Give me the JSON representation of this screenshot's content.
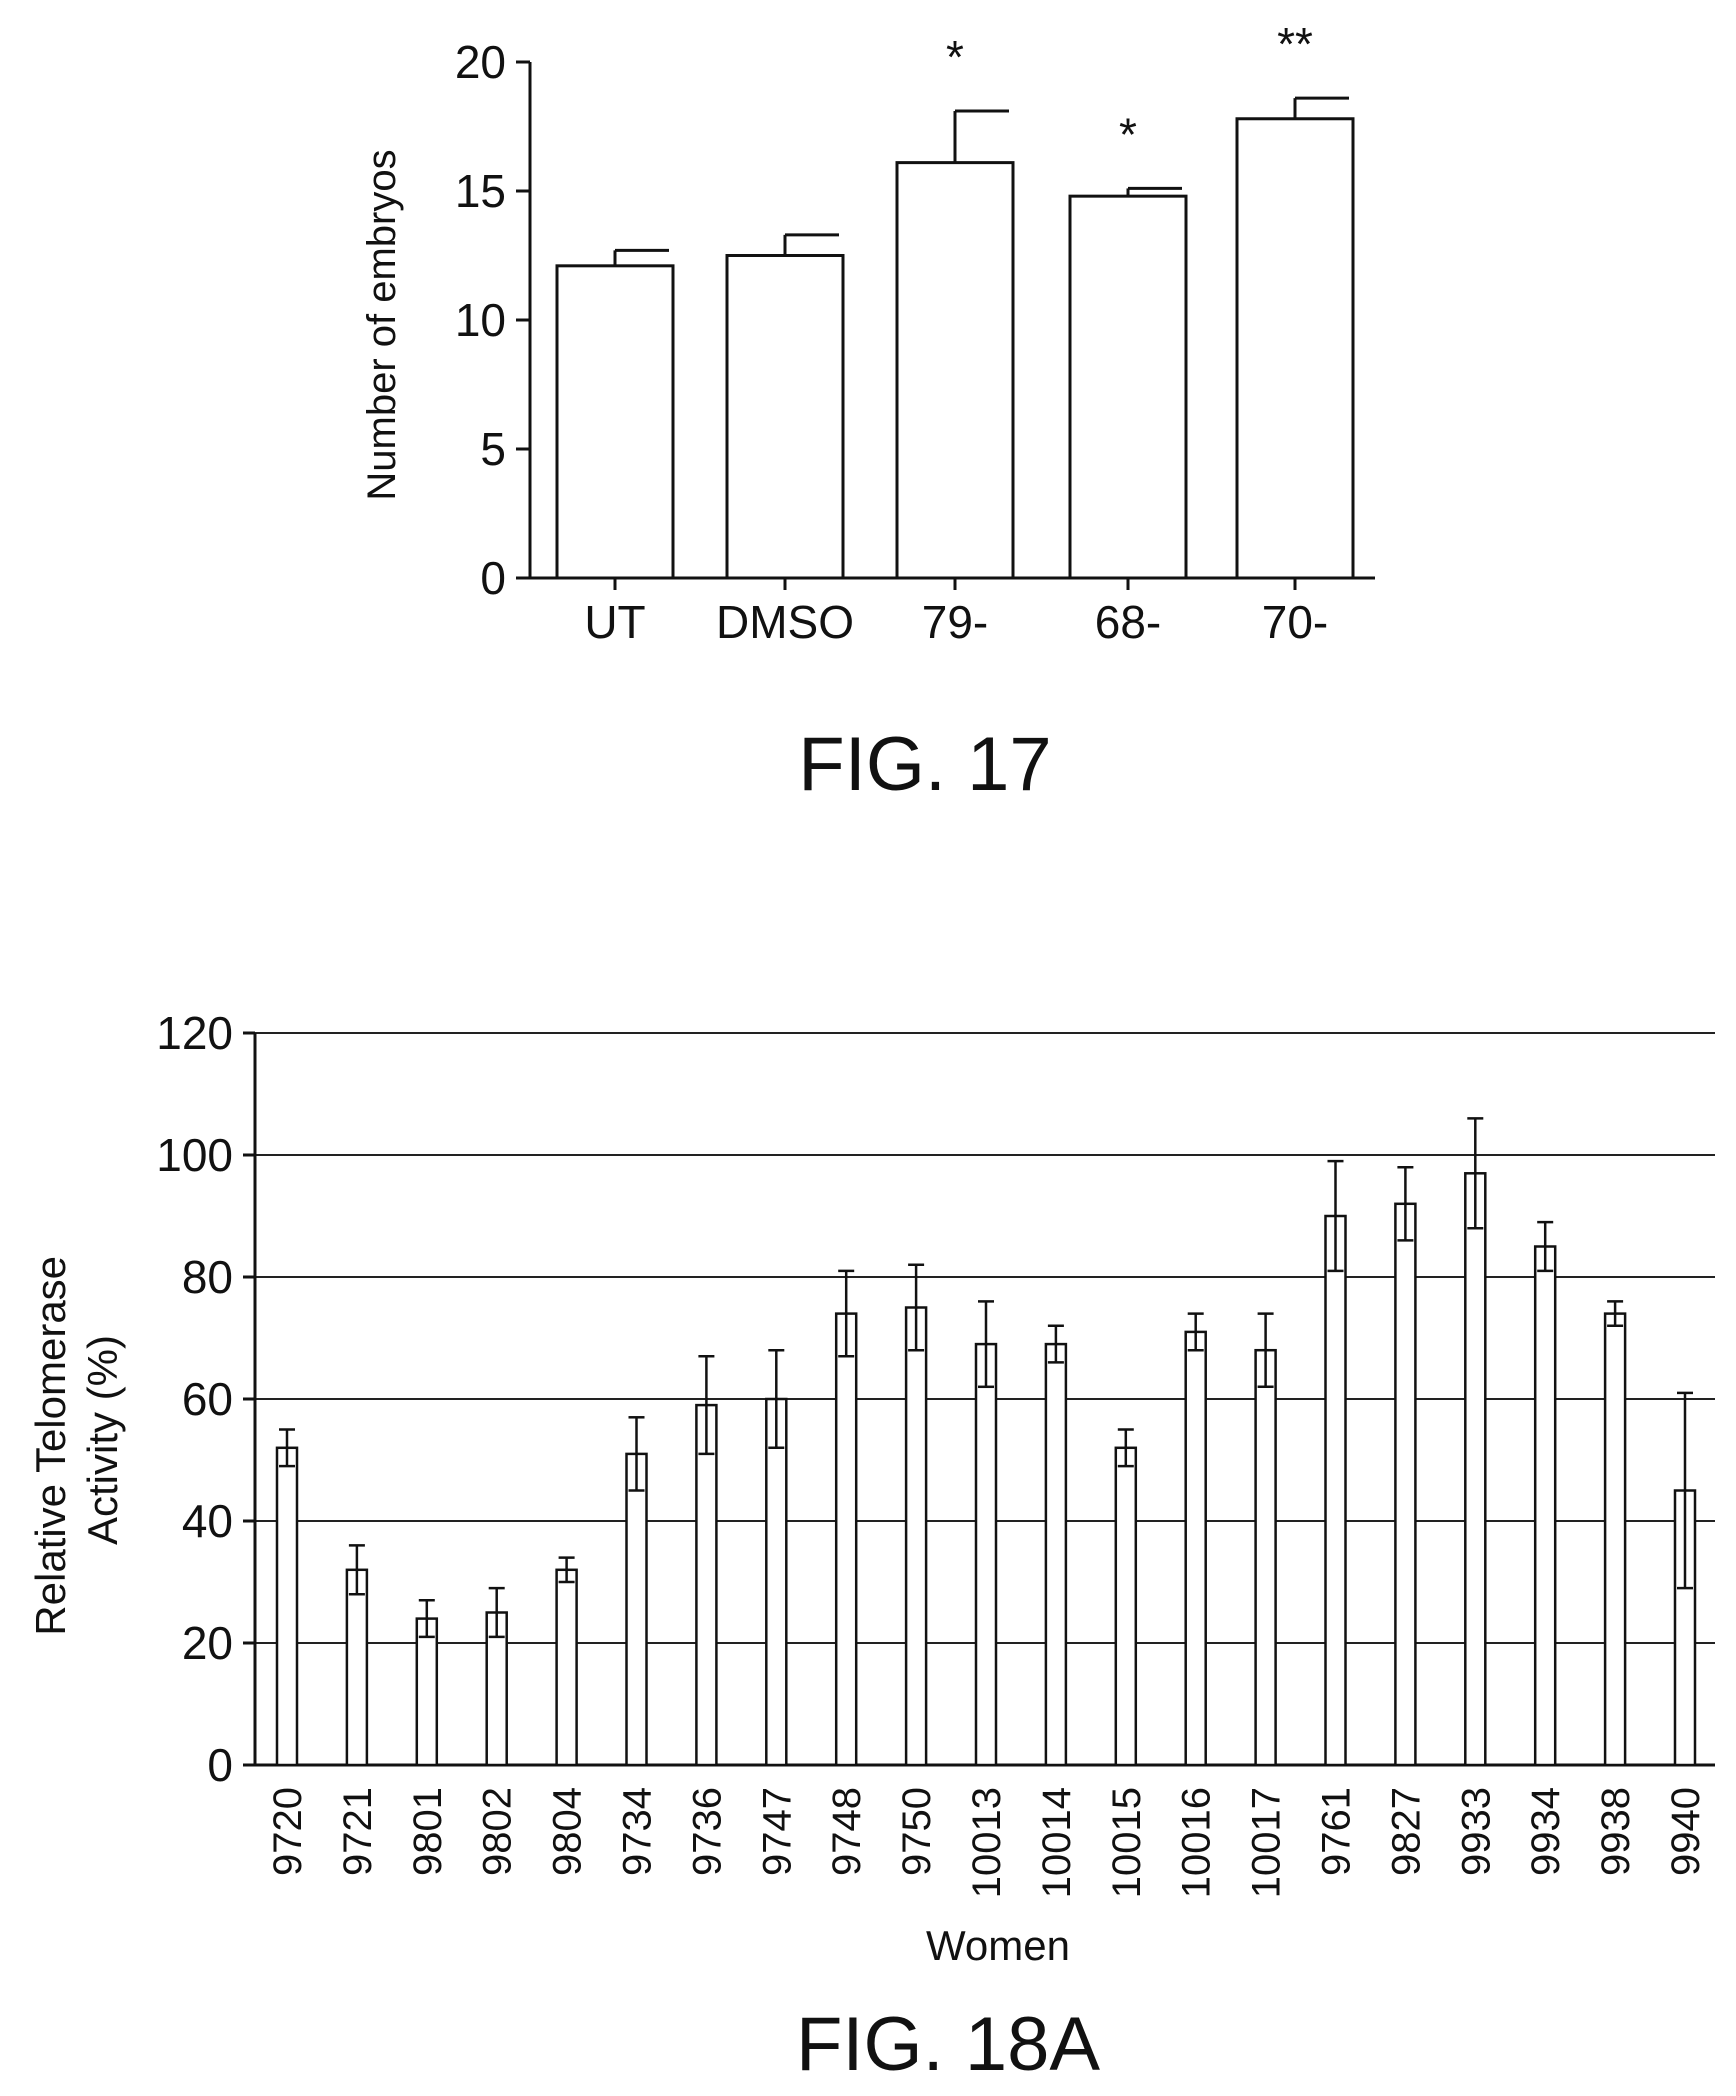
{
  "figures": [
    {
      "caption": "FIG. 17",
      "chart_data": {
        "type": "bar",
        "categories": [
          "UT",
          "DMSO",
          "79-",
          "68-",
          "70-"
        ],
        "values": [
          12.1,
          12.5,
          16.1,
          14.8,
          17.8
        ],
        "errors": [
          0.6,
          0.8,
          2.0,
          0.3,
          0.8
        ],
        "significance": [
          "",
          "",
          "*",
          "*",
          "**"
        ],
        "ylabel": "Number of embryos",
        "xlabel": "",
        "ylim": [
          0,
          20
        ],
        "yticks": [
          0,
          5,
          10,
          15,
          20
        ],
        "grid": false,
        "colors": {
          "bar_fill": "#ffffff",
          "stroke": "#111111"
        }
      }
    },
    {
      "caption": "FIG. 18A",
      "chart_data": {
        "type": "bar",
        "categories": [
          "9720",
          "9721",
          "9801",
          "9802",
          "9804",
          "9734",
          "9736",
          "9747",
          "9748",
          "9750",
          "10013",
          "10014",
          "10015",
          "10016",
          "10017",
          "9761",
          "9827",
          "9933",
          "9934",
          "9938",
          "9940"
        ],
        "values": [
          52,
          32,
          24,
          25,
          32,
          51,
          59,
          60,
          74,
          75,
          69,
          69,
          52,
          71,
          68,
          90,
          92,
          97,
          85,
          74,
          45
        ],
        "errors": [
          3,
          4,
          3,
          4,
          2,
          6,
          8,
          8,
          7,
          7,
          7,
          3,
          3,
          3,
          6,
          9,
          6,
          9,
          4,
          2,
          16
        ],
        "ylabel": "Relative Telomerase Activity (%)",
        "xlabel": "Women",
        "ylim": [
          0,
          120
        ],
        "yticks": [
          0,
          20,
          40,
          60,
          80,
          100,
          120
        ],
        "grid": true,
        "colors": {
          "bar_fill": "#ffffff",
          "stroke": "#111111",
          "grid": "#222222"
        }
      }
    }
  ]
}
